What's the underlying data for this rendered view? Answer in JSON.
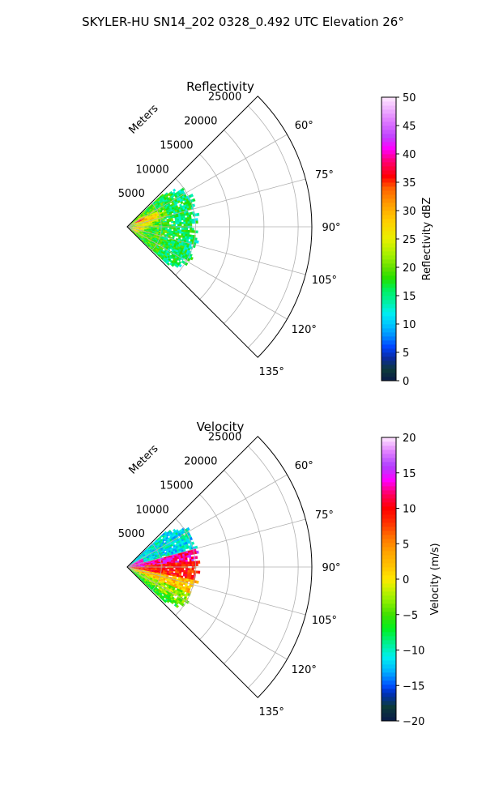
{
  "figure": {
    "suptitle": "SKYLER-HU  SN14_202  0328_0.492 UTC Elevation 26°"
  },
  "chart_data": [
    {
      "type": "heatmap",
      "projection": "polar-sector",
      "title": "Reflectivity",
      "range_label": "Meters",
      "range_ticks": [
        5000,
        10000,
        15000,
        20000,
        25000
      ],
      "range_max": 27000,
      "angle_ticks_deg": [
        60,
        75,
        90,
        105,
        120,
        135
      ],
      "angle_tick_labels": [
        "60°",
        "75°",
        "90°",
        "105°",
        "120°",
        "135°"
      ],
      "sector_deg": [
        45,
        135
      ],
      "grid": true,
      "colorbar": {
        "label": "Reflectivity dBZ",
        "min": 0,
        "max": 50,
        "ticks": [
          0,
          5,
          10,
          15,
          20,
          25,
          30,
          35,
          40,
          45,
          50
        ],
        "stops": [
          {
            "v": 0,
            "c": "#0a1a4a"
          },
          {
            "v": 2,
            "c": "#0c3a3a"
          },
          {
            "v": 4,
            "c": "#0a2aa0"
          },
          {
            "v": 6,
            "c": "#0044ff"
          },
          {
            "v": 8,
            "c": "#0090ff"
          },
          {
            "v": 10,
            "c": "#00c8ff"
          },
          {
            "v": 12,
            "c": "#00f0f0"
          },
          {
            "v": 14,
            "c": "#00f0a0"
          },
          {
            "v": 16,
            "c": "#00f060"
          },
          {
            "v": 18,
            "c": "#22e000"
          },
          {
            "v": 20,
            "c": "#66e000"
          },
          {
            "v": 22,
            "c": "#a0f000"
          },
          {
            "v": 25,
            "c": "#e8f000"
          },
          {
            "v": 28,
            "c": "#ffd000"
          },
          {
            "v": 31,
            "c": "#ffa000"
          },
          {
            "v": 34,
            "c": "#ff6000"
          },
          {
            "v": 36,
            "c": "#ff0000"
          },
          {
            "v": 39,
            "c": "#ff0080"
          },
          {
            "v": 41,
            "c": "#ff00ff"
          },
          {
            "v": 43,
            "c": "#c040ff"
          },
          {
            "v": 46,
            "c": "#e080ff"
          },
          {
            "v": 50,
            "c": "#ffe8ff"
          }
        ]
      },
      "field": {
        "max_range_m": 10200,
        "angle_range_deg": [
          47,
          133
        ],
        "base_value": 20,
        "edge_value": 15,
        "noise": 4,
        "patches": [
          {
            "angle": 62,
            "range": 1800,
            "value": 38,
            "spread_deg": 6,
            "spread_m": 900
          },
          {
            "angle": 68,
            "range": 3800,
            "value": 29,
            "spread_deg": 8,
            "spread_m": 1500
          },
          {
            "angle": 78,
            "range": 2500,
            "value": 26,
            "spread_deg": 10,
            "spread_m": 1500
          },
          {
            "angle": 95,
            "range": 1500,
            "value": 30,
            "spread_deg": 10,
            "spread_m": 800
          },
          {
            "angle": 115,
            "range": 1200,
            "value": 28,
            "spread_deg": 8,
            "spread_m": 700
          }
        ]
      }
    },
    {
      "type": "heatmap",
      "projection": "polar-sector",
      "title": "Velocity",
      "range_label": "Meters",
      "range_ticks": [
        5000,
        10000,
        15000,
        20000,
        25000
      ],
      "range_max": 27000,
      "angle_ticks_deg": [
        60,
        75,
        90,
        105,
        120,
        135
      ],
      "angle_tick_labels": [
        "60°",
        "75°",
        "90°",
        "105°",
        "120°",
        "135°"
      ],
      "sector_deg": [
        45,
        135
      ],
      "grid": true,
      "colorbar": {
        "label": "Velocity (m/s)",
        "min": -20,
        "max": 20,
        "ticks": [
          -20,
          -15,
          -10,
          -5,
          0,
          5,
          10,
          15,
          20
        ],
        "stops": [
          {
            "v": -20,
            "c": "#0a1a4a"
          },
          {
            "v": -18,
            "c": "#0c3a3a"
          },
          {
            "v": -16,
            "c": "#0030c0"
          },
          {
            "v": -15,
            "c": "#0050ff"
          },
          {
            "v": -13,
            "c": "#00b0ff"
          },
          {
            "v": -11,
            "c": "#00f0f0"
          },
          {
            "v": -9,
            "c": "#00f090"
          },
          {
            "v": -7,
            "c": "#00f020"
          },
          {
            "v": -5,
            "c": "#40e000"
          },
          {
            "v": -3,
            "c": "#90f000"
          },
          {
            "v": -1,
            "c": "#d8f000"
          },
          {
            "v": 0,
            "c": "#ffe800"
          },
          {
            "v": 2,
            "c": "#ffc000"
          },
          {
            "v": 4,
            "c": "#ffa000"
          },
          {
            "v": 6,
            "c": "#ff7000"
          },
          {
            "v": 8,
            "c": "#ff3000"
          },
          {
            "v": 10,
            "c": "#ff0000"
          },
          {
            "v": 12,
            "c": "#ff0060"
          },
          {
            "v": 14,
            "c": "#ff00ff"
          },
          {
            "v": 16,
            "c": "#b040ff"
          },
          {
            "v": 18,
            "c": "#e080ff"
          },
          {
            "v": 20,
            "c": "#ffe8ff"
          }
        ]
      },
      "field": {
        "max_range_m": 10200,
        "angle_range_deg": [
          47,
          133
        ],
        "bands": [
          {
            "from": 47,
            "to": 74,
            "value": -11
          },
          {
            "from": 74,
            "to": 84,
            "value": 13
          },
          {
            "from": 84,
            "to": 100,
            "value": 9
          },
          {
            "from": 100,
            "to": 112,
            "value": 2
          },
          {
            "from": 112,
            "to": 125,
            "value": -3
          },
          {
            "from": 125,
            "to": 133,
            "value": -6
          }
        ],
        "near_value": 14,
        "near_range_m": 2500,
        "near_angle_deg": [
          58,
          90
        ],
        "noise": 3
      }
    }
  ]
}
